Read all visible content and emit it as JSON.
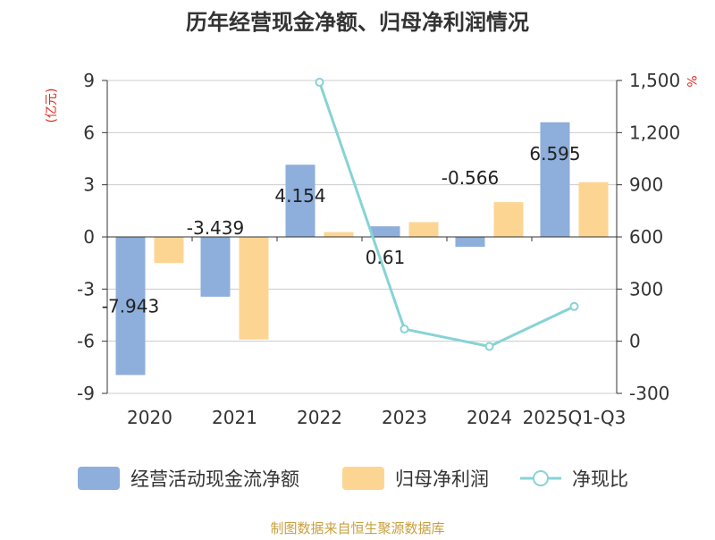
{
  "chart_data": {
    "type": "bar",
    "title": "历年经营现金净额、归母净利润情况",
    "categories": [
      "2020",
      "2021",
      "2022",
      "2023",
      "2024",
      "2025Q1-Q3"
    ],
    "series": [
      {
        "name": "经营活动现金流净额",
        "type": "bar",
        "axis": "left",
        "color": "#8eaedb",
        "values": [
          -7.943,
          -3.439,
          4.154,
          0.61,
          -0.566,
          6.595
        ],
        "labels": [
          "-7.943",
          "-3.439",
          "4.154",
          "0.61",
          "-0.566",
          "6.595"
        ]
      },
      {
        "name": "归母净利润",
        "type": "bar",
        "axis": "left",
        "color": "#fdd593",
        "values": [
          -1.5,
          -5.9,
          0.28,
          0.85,
          2.0,
          3.15
        ]
      },
      {
        "name": "净现比",
        "type": "line",
        "axis": "right",
        "color": "#87d3d6",
        "values": [
          null,
          null,
          1490,
          70,
          -30,
          200
        ]
      }
    ],
    "y_left": {
      "label": "(亿元)",
      "ylim": [
        -9,
        9
      ],
      "ticks": [
        -9,
        -6,
        -3,
        0,
        3,
        6,
        9
      ],
      "tick_labels": [
        "-9",
        "-6",
        "-3",
        "0",
        "3",
        "6",
        "9"
      ]
    },
    "y_right": {
      "label": "%",
      "ylim": [
        -300,
        1500
      ],
      "ticks": [
        -300,
        0,
        300,
        600,
        900,
        1200,
        1500
      ],
      "tick_labels": [
        "-300",
        "0",
        "300",
        "600",
        "900",
        "1,200",
        "1,500"
      ]
    },
    "legend_position": "bottom",
    "source": "制图数据来自恒生聚源数据库"
  }
}
